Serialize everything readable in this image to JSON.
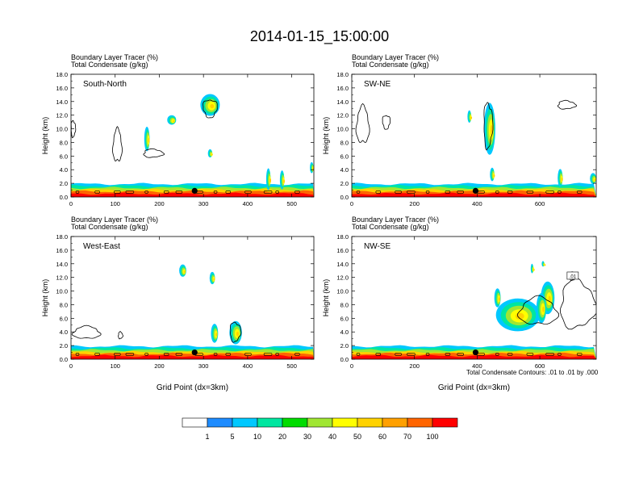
{
  "title": "2014-01-15_15:00:00",
  "subtitle_line1": "Boundary Layer Tracer   (%)",
  "subtitle_line2": "Total Condensate   (g/kg)",
  "contour_note": "Total Condensate Contours: .01 to .01 by .000",
  "colorbar": {
    "colors": [
      "#ffffff",
      "#1e8cff",
      "#00c8ff",
      "#00e6a0",
      "#00dc00",
      "#a0e632",
      "#ffff00",
      "#ffd200",
      "#ffa000",
      "#ff6400",
      "#ff0000"
    ],
    "labels": [
      "1",
      "5",
      "10",
      "20",
      "30",
      "40",
      "50",
      "60",
      "70",
      "100"
    ]
  },
  "chart_data": [
    {
      "type": "contour",
      "panel": "South-North",
      "title": "South-North",
      "xlabel": "",
      "ylabel": "Height (km)",
      "xlim": [
        0,
        550
      ],
      "ylim": [
        0,
        18
      ],
      "xticks": [
        0,
        100,
        200,
        300,
        400,
        500
      ],
      "xtick_labels": [
        "0",
        "100",
        "200",
        "300",
        "400",
        "500"
      ],
      "yticks": [
        0,
        2,
        4,
        6,
        8,
        10,
        12,
        14,
        16,
        18
      ],
      "ytick_labels": [
        "0.0",
        "2.0",
        "4.0",
        "6.0",
        "8.0",
        "10.0",
        "12.0",
        "14.0",
        "16.0",
        "18.0"
      ],
      "location_marker": {
        "x": 280,
        "height_km": 0.9
      },
      "tracer_blobs": [
        {
          "x": 315,
          "y": 13.5,
          "rx": 22,
          "ry": 1.6
        },
        {
          "x": 228,
          "y": 11.3,
          "rx": 10,
          "ry": 0.7
        },
        {
          "x": 172,
          "y": 8.5,
          "rx": 6,
          "ry": 1.8
        },
        {
          "x": 315,
          "y": 6.4,
          "rx": 5,
          "ry": 0.6
        },
        {
          "x": 447,
          "y": 2.6,
          "rx": 5,
          "ry": 1.6
        },
        {
          "x": 478,
          "y": 2.5,
          "rx": 5,
          "ry": 1.4
        },
        {
          "x": 545,
          "y": 4.3,
          "rx": 4,
          "ry": 0.8
        }
      ],
      "condensate_contours": [
        {
          "x": 105,
          "y": 7.5,
          "rx": 10,
          "ry": 2.4
        },
        {
          "x": 186,
          "y": 6.4,
          "rx": 22,
          "ry": 0.6
        },
        {
          "x": 5,
          "y": 10.0,
          "rx": 5,
          "ry": 1.2
        },
        {
          "x": 315,
          "y": 13.0,
          "rx": 16,
          "ry": 1.3
        }
      ],
      "boundary_layer_top_km": 1.9
    },
    {
      "type": "contour",
      "panel": "SW-NE",
      "title": "SW-NE",
      "xlabel": "",
      "ylabel": "Height (km)",
      "xlim": [
        0,
        780
      ],
      "ylim": [
        0,
        18
      ],
      "xticks": [
        0,
        200,
        400,
        600
      ],
      "xtick_labels": [
        "0",
        "200",
        "400",
        "600"
      ],
      "yticks": [
        0,
        2,
        4,
        6,
        8,
        10,
        12,
        14,
        16,
        18
      ],
      "ytick_labels": [
        "0.0",
        "2.0",
        "4.0",
        "6.0",
        "8.0",
        "10.0",
        "12.0",
        "14.0",
        "16.0",
        "18.0"
      ],
      "location_marker": {
        "x": 395,
        "height_km": 0.9
      },
      "tracer_blobs": [
        {
          "x": 440,
          "y": 10.0,
          "rx": 18,
          "ry": 3.8
        },
        {
          "x": 375,
          "y": 11.8,
          "rx": 6,
          "ry": 0.9
        },
        {
          "x": 448,
          "y": 3.3,
          "rx": 7,
          "ry": 1.0
        },
        {
          "x": 665,
          "y": 2.8,
          "rx": 8,
          "ry": 1.3
        },
        {
          "x": 770,
          "y": 2.7,
          "rx": 10,
          "ry": 0.8
        }
      ],
      "condensate_contours": [
        {
          "x": 35,
          "y": 10.5,
          "rx": 20,
          "ry": 2.7
        },
        {
          "x": 685,
          "y": 13.5,
          "rx": 28,
          "ry": 0.6
        },
        {
          "x": 435,
          "y": 10.5,
          "rx": 14,
          "ry": 3.3
        },
        {
          "x": 110,
          "y": 11.0,
          "rx": 12,
          "ry": 1.0
        }
      ],
      "boundary_layer_top_km": 1.9
    },
    {
      "type": "contour",
      "panel": "West-East",
      "title": "West-East",
      "xlabel": "Grid Point (dx=3km)",
      "ylabel": "Height (km)",
      "xlim": [
        0,
        550
      ],
      "ylim": [
        0,
        18
      ],
      "xticks": [
        0,
        100,
        200,
        300,
        400,
        500
      ],
      "xtick_labels": [
        "0",
        "100",
        "200",
        "300",
        "400",
        "500"
      ],
      "yticks": [
        0,
        2,
        4,
        6,
        8,
        10,
        12,
        14,
        16,
        18
      ],
      "ytick_labels": [
        "0.0",
        "2.0",
        "4.0",
        "6.0",
        "8.0",
        "10.0",
        "12.0",
        "14.0",
        "16.0",
        "18.0"
      ],
      "location_marker": {
        "x": 280,
        "height_km": 1.0
      },
      "tracer_blobs": [
        {
          "x": 253,
          "y": 13.0,
          "rx": 8,
          "ry": 0.9
        },
        {
          "x": 320,
          "y": 11.9,
          "rx": 6,
          "ry": 0.9
        },
        {
          "x": 325,
          "y": 3.8,
          "rx": 8,
          "ry": 1.4
        },
        {
          "x": 373,
          "y": 3.9,
          "rx": 14,
          "ry": 1.7
        }
      ],
      "condensate_contours": [
        {
          "x": 35,
          "y": 3.9,
          "rx": 30,
          "ry": 0.9
        },
        {
          "x": 112,
          "y": 3.5,
          "rx": 5,
          "ry": 0.5
        },
        {
          "x": 372,
          "y": 4.0,
          "rx": 12,
          "ry": 1.4
        }
      ],
      "boundary_layer_top_km": 1.9
    },
    {
      "type": "contour",
      "panel": "NW-SE",
      "title": "NW-SE",
      "xlabel": "Grid Point (dx=3km)",
      "ylabel": "Height (km)",
      "xlim": [
        0,
        780
      ],
      "ylim": [
        0,
        18
      ],
      "xticks": [
        0,
        200,
        400,
        600
      ],
      "xtick_labels": [
        "0",
        "200",
        "400",
        "600"
      ],
      "yticks": [
        0,
        2,
        4,
        6,
        8,
        10,
        12,
        14,
        16,
        18
      ],
      "ytick_labels": [
        "0.0",
        "2.0",
        "4.0",
        "6.0",
        "8.0",
        "10.0",
        "12.0",
        "14.0",
        "16.0",
        "18.0"
      ],
      "location_marker": {
        "x": 395,
        "height_km": 1.0
      },
      "contour_label": ".01",
      "tracer_blobs": [
        {
          "x": 530,
          "y": 6.5,
          "rx": 70,
          "ry": 2.4
        },
        {
          "x": 625,
          "y": 9.0,
          "rx": 22,
          "ry": 2.4
        },
        {
          "x": 465,
          "y": 9.0,
          "rx": 10,
          "ry": 1.4
        },
        {
          "x": 575,
          "y": 13.3,
          "rx": 4,
          "ry": 0.7
        },
        {
          "x": 610,
          "y": 14.0,
          "rx": 4,
          "ry": 0.4
        },
        {
          "x": 700,
          "y": 12.3,
          "rx": 5,
          "ry": 0.5
        },
        {
          "x": 605,
          "y": 7.5,
          "rx": 16,
          "ry": 2.2
        }
      ],
      "condensate_contours": [
        {
          "x": 595,
          "y": 7.0,
          "rx": 60,
          "ry": 2.0
        },
        {
          "x": 720,
          "y": 8.0,
          "rx": 55,
          "ry": 3.5
        },
        {
          "x": 705,
          "y": 12.2,
          "rx": 12,
          "ry": 0.6
        }
      ],
      "boundary_layer_top_km": 1.9
    }
  ]
}
